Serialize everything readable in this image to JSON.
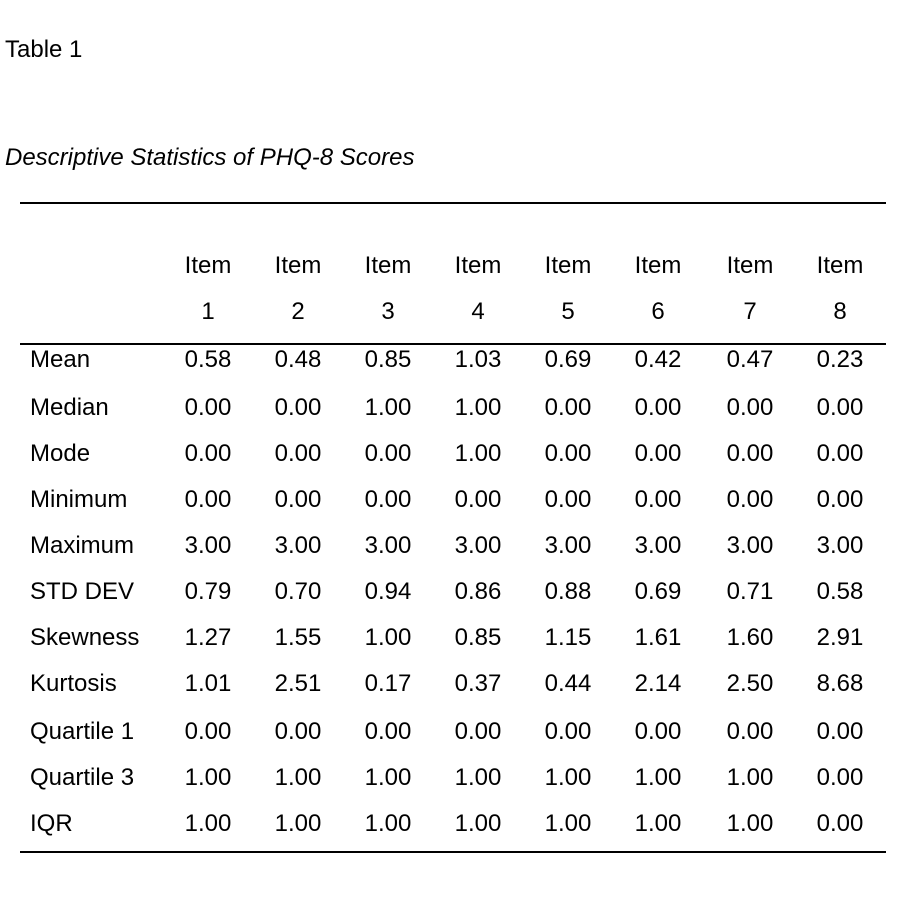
{
  "table_label": "Table 1",
  "title": "Descriptive Statistics of PHQ-8 Scores",
  "columns": [
    {
      "line1": "Item",
      "line2": "1"
    },
    {
      "line1": "Item",
      "line2": "2"
    },
    {
      "line1": "Item",
      "line2": "3"
    },
    {
      "line1": "Item",
      "line2": "4"
    },
    {
      "line1": "Item",
      "line2": "5"
    },
    {
      "line1": "Item",
      "line2": "6"
    },
    {
      "line1": "Item",
      "line2": "7"
    },
    {
      "line1": "Item",
      "line2": "8"
    }
  ],
  "rows": [
    {
      "label": "Mean",
      "values": [
        "0.58",
        "0.48",
        "0.85",
        "1.03",
        "0.69",
        "0.42",
        "0.47",
        "0.23"
      ]
    },
    {
      "label": "Median",
      "values": [
        "0.00",
        "0.00",
        "1.00",
        "1.00",
        "0.00",
        "0.00",
        "0.00",
        "0.00"
      ]
    },
    {
      "label": "Mode",
      "values": [
        "0.00",
        "0.00",
        "0.00",
        "1.00",
        "0.00",
        "0.00",
        "0.00",
        "0.00"
      ]
    },
    {
      "label": "Minimum",
      "values": [
        "0.00",
        "0.00",
        "0.00",
        "0.00",
        "0.00",
        "0.00",
        "0.00",
        "0.00"
      ]
    },
    {
      "label": "Maximum",
      "values": [
        "3.00",
        "3.00",
        "3.00",
        "3.00",
        "3.00",
        "3.00",
        "3.00",
        "3.00"
      ]
    },
    {
      "label": "STD DEV",
      "values": [
        "0.79",
        "0.70",
        "0.94",
        "0.86",
        "0.88",
        "0.69",
        "0.71",
        "0.58"
      ]
    },
    {
      "label": "Skewness",
      "values": [
        "1.27",
        "1.55",
        "1.00",
        "0.85",
        "1.15",
        "1.61",
        "1.60",
        "2.91"
      ]
    },
    {
      "label": "Kurtosis",
      "values": [
        "1.01",
        "2.51",
        "0.17",
        "0.37",
        "0.44",
        "2.14",
        "2.50",
        "8.68"
      ]
    },
    {
      "label": "Quartile 1",
      "values": [
        "0.00",
        "0.00",
        "0.00",
        "0.00",
        "0.00",
        "0.00",
        "0.00",
        "0.00"
      ]
    },
    {
      "label": "Quartile 3",
      "values": [
        "1.00",
        "1.00",
        "1.00",
        "1.00",
        "1.00",
        "1.00",
        "1.00",
        "0.00"
      ]
    },
    {
      "label": "IQR",
      "values": [
        "1.00",
        "1.00",
        "1.00",
        "1.00",
        "1.00",
        "1.00",
        "1.00",
        "0.00"
      ]
    }
  ]
}
